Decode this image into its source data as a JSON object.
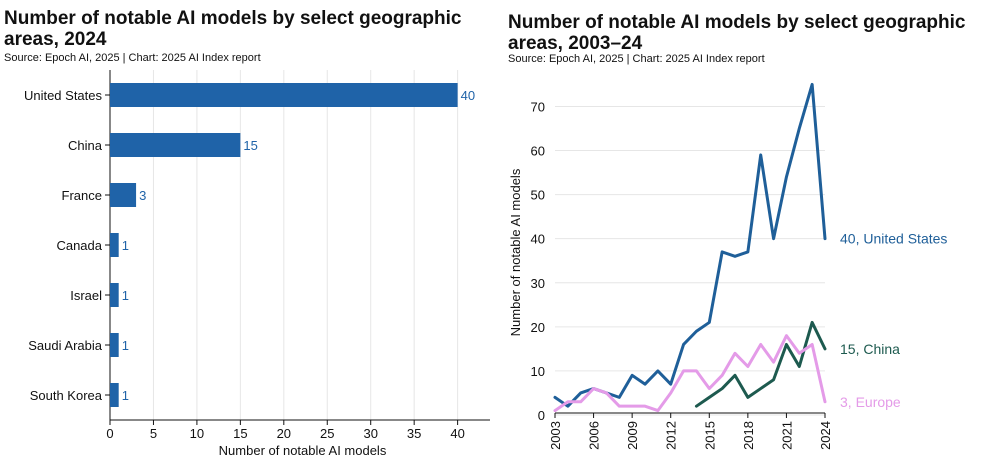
{
  "chart_data": [
    {
      "type": "bar",
      "orientation": "horizontal",
      "title": "Number of notable AI models by select geographic areas, 2024",
      "title_lines": [
        "Number of notable AI models by select geographic",
        "areas, 2024"
      ],
      "source": "Source: Epoch AI, 2025 | Chart: 2025 AI Index report",
      "categories": [
        "United States",
        "China",
        "France",
        "Canada",
        "Israel",
        "Saudi Arabia",
        "South Korea"
      ],
      "values": [
        40,
        15,
        3,
        1,
        1,
        1,
        1
      ],
      "data_labels": [
        "40",
        "15",
        "3",
        "1",
        "1",
        "1",
        "1"
      ],
      "xlabel": "Number of notable AI models",
      "ylabel": "",
      "xlim": [
        0,
        42
      ],
      "xticks": [
        0,
        5,
        10,
        15,
        20,
        25,
        30,
        35,
        40
      ],
      "grid": "vertical",
      "bar_color": "#1f63a8",
      "label_color": "#1f63a8"
    },
    {
      "type": "line",
      "title": "Number of notable AI models by select geographic areas, 2003–24",
      "title_lines": [
        "Number of notable AI models by select geographic",
        "areas, 2003–24"
      ],
      "source": "Source: Epoch AI, 2025 | Chart: 2025 AI Index report",
      "x": [
        2003,
        2004,
        2005,
        2006,
        2007,
        2008,
        2009,
        2010,
        2011,
        2012,
        2013,
        2014,
        2015,
        2016,
        2017,
        2018,
        2019,
        2020,
        2021,
        2022,
        2023,
        2024
      ],
      "xticks": [
        2003,
        2006,
        2009,
        2012,
        2015,
        2018,
        2021,
        2024
      ],
      "ylabel": "Number of notable AI models",
      "xlabel": "",
      "ylim": [
        0,
        76
      ],
      "yticks": [
        0,
        10,
        20,
        30,
        40,
        50,
        60,
        70
      ],
      "grid": "horizontal",
      "series": [
        {
          "name": "United States",
          "end_label": "40, United States",
          "color": "#1f5f99",
          "x": [
            2003,
            2004,
            2005,
            2006,
            2007,
            2008,
            2009,
            2010,
            2011,
            2012,
            2013,
            2014,
            2015,
            2016,
            2017,
            2018,
            2019,
            2020,
            2021,
            2022,
            2023,
            2024
          ],
          "values": [
            4,
            2,
            5,
            6,
            5,
            4,
            9,
            7,
            10,
            7,
            16,
            19,
            21,
            37,
            36,
            37,
            59,
            40,
            54,
            65,
            75,
            40
          ]
        },
        {
          "name": "China",
          "end_label": "15, China",
          "color": "#1d5a4f",
          "x": [
            2014,
            2015,
            2016,
            2017,
            2018,
            2019,
            2020,
            2021,
            2022,
            2023,
            2024
          ],
          "values": [
            2,
            4,
            6,
            9,
            4,
            6,
            8,
            16,
            11,
            21,
            15
          ]
        },
        {
          "name": "Europe",
          "end_label": "3, Europe",
          "color": "#e49be8",
          "x": [
            2003,
            2004,
            2005,
            2006,
            2007,
            2008,
            2009,
            2010,
            2011,
            2012,
            2013,
            2014,
            2015,
            2016,
            2017,
            2018,
            2019,
            2020,
            2021,
            2022,
            2023,
            2024
          ],
          "values": [
            1,
            3,
            3,
            6,
            5,
            2,
            2,
            2,
            1,
            5,
            10,
            10,
            6,
            9,
            14,
            11,
            16,
            12,
            18,
            14,
            16,
            3
          ]
        }
      ]
    }
  ]
}
